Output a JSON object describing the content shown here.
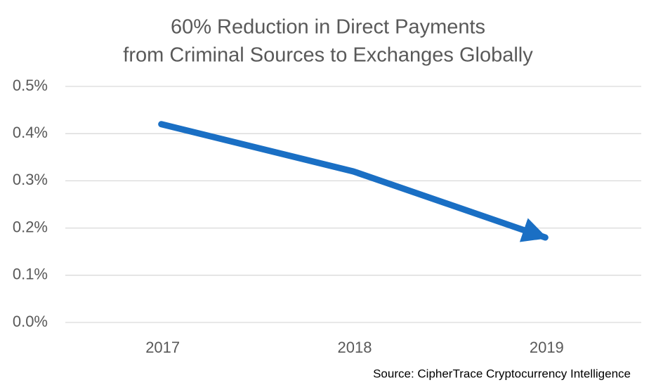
{
  "chart_data": {
    "type": "line",
    "title": [
      "60% Reduction in Direct Payments",
      "from Criminal Sources to Exchanges Globally"
    ],
    "categories": [
      "2017",
      "2018",
      "2019"
    ],
    "values": [
      0.42,
      0.32,
      0.18
    ],
    "color": "#1a6fc4",
    "ylim": [
      0,
      0.5
    ],
    "yticks": [
      {
        "value": 0,
        "label": "0.0%"
      },
      {
        "value": 0.1,
        "label": "0.1%"
      },
      {
        "value": 0.2,
        "label": "0.2%"
      },
      {
        "value": 0.3,
        "label": "0.3%"
      },
      {
        "value": 0.4,
        "label": "0.4%"
      },
      {
        "value": 0.5,
        "label": "0.5%"
      }
    ],
    "grid": true,
    "arrow": true,
    "source": "Source: CipherTrace Cryptocurrency Intelligence"
  }
}
